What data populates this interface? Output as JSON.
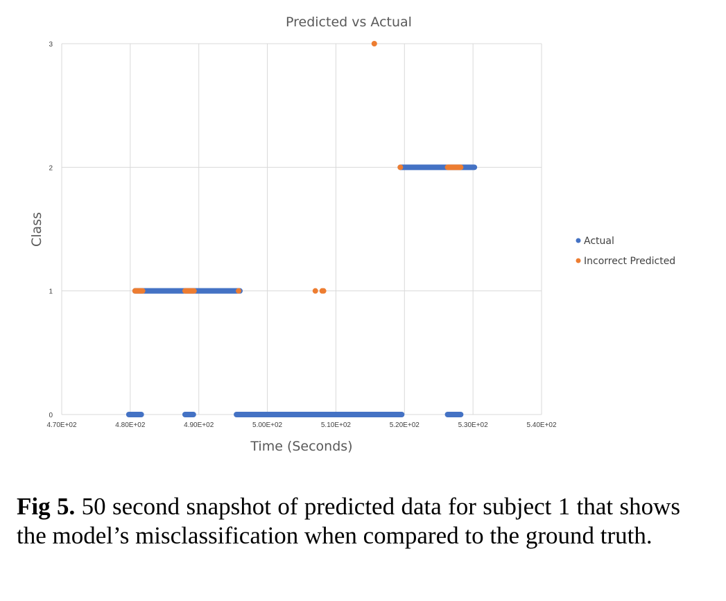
{
  "chart_data": {
    "type": "scatter",
    "title": "Predicted vs Actual",
    "xlabel": "Time (Seconds)",
    "ylabel": "Class",
    "xlim": [
      470,
      540
    ],
    "ylim": [
      0,
      3
    ],
    "x_ticks": [
      470,
      480,
      490,
      500,
      510,
      520,
      530,
      540
    ],
    "x_tick_labels": [
      "4.70E+02",
      "4.80E+02",
      "4.90E+02",
      "5.00E+02",
      "5.10E+02",
      "5.20E+02",
      "5.30E+02",
      "5.40E+02"
    ],
    "y_ticks": [
      0,
      1,
      2,
      3
    ],
    "y_tick_labels": [
      "0",
      "1",
      "2",
      "3"
    ],
    "grid": true,
    "legend_position": "right",
    "series": [
      {
        "name": "Actual",
        "color": "#4472C4",
        "segments": [
          {
            "y": 0,
            "x_start": 479.8,
            "x_end": 481.6
          },
          {
            "y": 0,
            "x_start": 488.0,
            "x_end": 489.2
          },
          {
            "y": 0,
            "x_start": 495.5,
            "x_end": 519.6
          },
          {
            "y": 0,
            "x_start": 526.3,
            "x_end": 528.2
          },
          {
            "y": 1,
            "x_start": 480.7,
            "x_end": 496.0
          },
          {
            "y": 2,
            "x_start": 519.4,
            "x_end": 530.2
          }
        ]
      },
      {
        "name": "Incorrect Predicted",
        "color": "#ED7D31",
        "segments": [
          {
            "y": 1,
            "x_start": 480.7,
            "x_end": 481.8
          },
          {
            "y": 1,
            "x_start": 488.0,
            "x_end": 489.3
          },
          {
            "y": 2,
            "x_start": 526.3,
            "x_end": 528.2
          }
        ],
        "points": [
          {
            "x": 495.8,
            "y": 1
          },
          {
            "x": 507.0,
            "y": 1
          },
          {
            "x": 508.0,
            "y": 1
          },
          {
            "x": 508.2,
            "y": 1
          },
          {
            "x": 519.4,
            "y": 2
          },
          {
            "x": 515.6,
            "y": 3
          }
        ]
      }
    ]
  },
  "caption": {
    "label": "Fig 5.",
    "text": " 50 second snapshot of predicted data for subject 1 that shows the model’s misclassification when compared to the ground truth."
  }
}
